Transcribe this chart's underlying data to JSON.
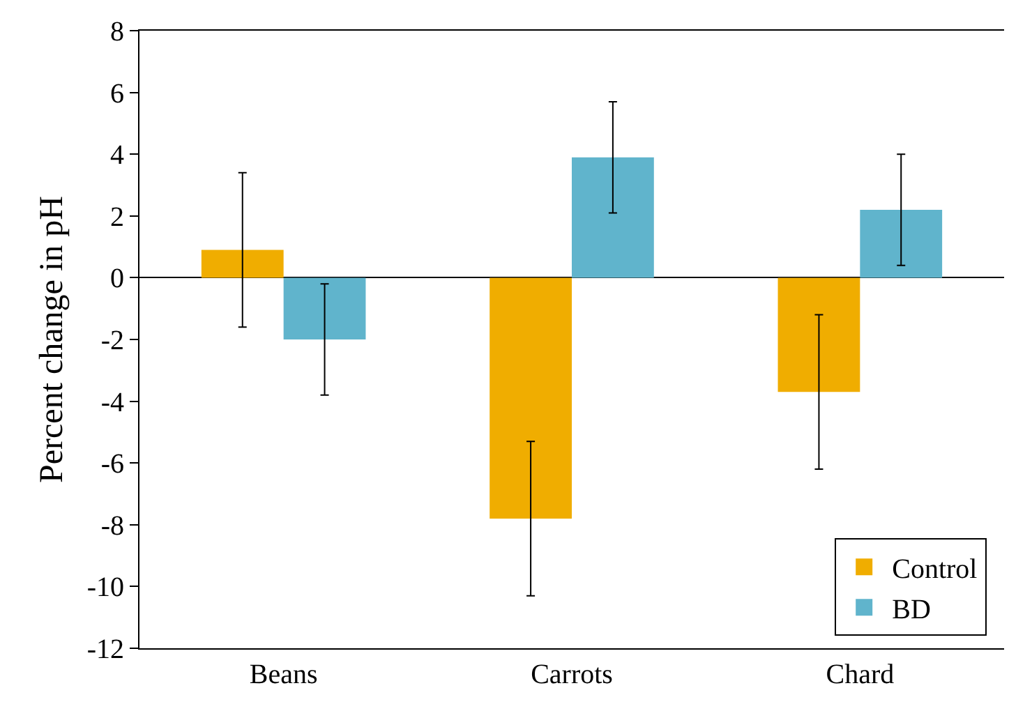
{
  "chart_data": {
    "type": "bar",
    "ylabel": "Percent change in pH",
    "categories": [
      "Beans",
      "Carrots",
      "Chard"
    ],
    "series": [
      {
        "name": "Control",
        "color": "#f0ad00",
        "values": [
          0.9,
          -7.8,
          -3.7
        ],
        "errors": [
          2.5,
          2.5,
          2.5
        ]
      },
      {
        "name": "BD",
        "color": "#60b4cc",
        "values": [
          -2.0,
          3.9,
          2.2
        ],
        "errors": [
          1.8,
          1.8,
          1.8
        ]
      }
    ],
    "ylim": [
      -12,
      8
    ],
    "yticks": [
      -12,
      -10,
      -8,
      -6,
      -4,
      -2,
      0,
      2,
      4,
      6,
      8
    ],
    "legend": "bottom right"
  }
}
